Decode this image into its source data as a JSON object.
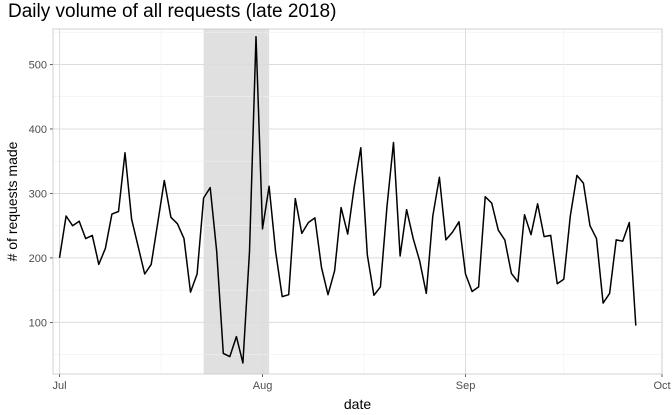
{
  "chart_data": {
    "type": "line",
    "title": "Daily volume of all requests (late 2018)",
    "xlabel": "date",
    "ylabel": "# of requests made",
    "x_start": "2018-07-01",
    "x_end": "2018-09-29",
    "xlim": [
      "2018-06-30",
      "2018-10-01"
    ],
    "ylim": [
      20,
      555
    ],
    "x_ticks": [
      {
        "date": "2018-07-01",
        "label": "Jul"
      },
      {
        "date": "2018-08-01",
        "label": "Aug"
      },
      {
        "date": "2018-09-01",
        "label": "Sep"
      },
      {
        "date": "2018-10-01",
        "label": "Oct"
      }
    ],
    "y_ticks": [
      100,
      200,
      300,
      400,
      500
    ],
    "shaded_region": {
      "start": "2018-07-23",
      "end": "2018-08-02",
      "color": "#e0e0e0"
    },
    "grid": true,
    "line_color": "#000000",
    "series": [
      {
        "values": [
          200,
          265,
          250,
          257,
          230,
          235,
          190,
          215,
          268,
          272,
          363,
          260,
          218,
          175,
          190,
          255,
          320,
          263,
          253,
          230,
          147,
          175,
          293,
          309,
          210,
          52,
          47,
          78,
          37,
          210,
          543,
          245,
          311,
          210,
          140,
          143,
          292,
          238,
          255,
          262,
          185,
          143,
          180,
          278,
          237,
          310,
          371,
          205,
          142,
          155,
          280,
          379,
          203,
          275,
          230,
          195,
          145,
          265,
          325,
          228,
          240,
          256,
          175,
          148,
          155,
          295,
          285,
          243,
          228,
          176,
          163,
          267,
          236,
          284,
          233,
          235,
          160,
          167,
          265,
          328,
          316,
          250,
          230,
          130,
          145,
          228,
          226,
          255,
          95
        ]
      }
    ]
  }
}
